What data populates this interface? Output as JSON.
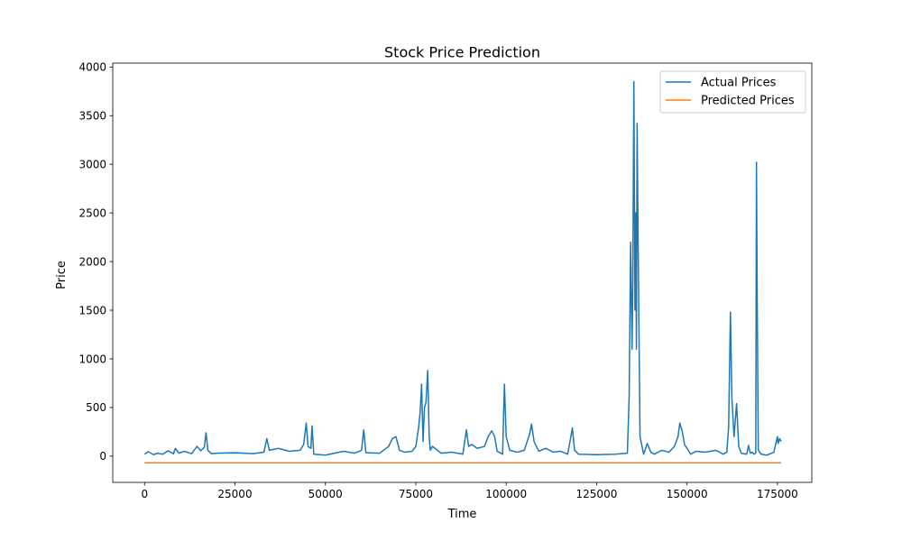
{
  "chart_data": {
    "type": "line",
    "title": "Stock Price Prediction",
    "xlabel": "Time",
    "ylabel": "Price",
    "xlim": [
      -8800,
      184500
    ],
    "ylim": [
      -270,
      4040
    ],
    "xticks": [
      0,
      25000,
      50000,
      75000,
      100000,
      125000,
      150000,
      175000
    ],
    "xtick_labels": [
      "0",
      "25000",
      "50000",
      "75000",
      "100000",
      "125000",
      "150000",
      "175000"
    ],
    "yticks": [
      0,
      500,
      1000,
      1500,
      2000,
      2500,
      3000,
      3500,
      4000
    ],
    "ytick_labels": [
      "0",
      "500",
      "1000",
      "1500",
      "2000",
      "2500",
      "3000",
      "3500",
      "4000"
    ],
    "grid": false,
    "legend_position": "top-right",
    "series": [
      {
        "name": "Actual Prices",
        "color": "#1f77b4",
        "x": [
          0,
          1000,
          2500,
          3500,
          5000,
          6500,
          8000,
          8500,
          9500,
          11000,
          13000,
          14500,
          15500,
          16500,
          17000,
          17500,
          18500,
          20000,
          25000,
          30000,
          33000,
          33800,
          34500,
          37000,
          40000,
          43000,
          44000,
          44700,
          45200,
          46000,
          46300,
          46800,
          50000,
          55000,
          58000,
          60000,
          60600,
          61200,
          65000,
          67500,
          68500,
          69500,
          70500,
          72000,
          74000,
          75000,
          75800,
          76200,
          76600,
          77000,
          77400,
          77800,
          78300,
          78700,
          79000,
          79600,
          81000,
          82000,
          85000,
          88000,
          89000,
          89600,
          90500,
          92000,
          94000,
          95000,
          96000,
          96800,
          97500,
          99000,
          99500,
          100000,
          101000,
          103000,
          105000,
          106500,
          107000,
          107700,
          109000,
          111000,
          113000,
          115000,
          117000,
          118300,
          118900,
          120000,
          125000,
          130000,
          133500,
          134000,
          134400,
          134800,
          135000,
          135300,
          135600,
          135800,
          136000,
          136200,
          136500,
          137000,
          138000,
          139000,
          140000,
          141000,
          143000,
          145000,
          146500,
          147500,
          148000,
          148700,
          149300,
          150000,
          151000,
          152500,
          155000,
          158000,
          160000,
          161000,
          161500,
          162000,
          162400,
          163000,
          163700,
          164300,
          165000,
          166500,
          167000,
          167500,
          168000,
          168500,
          169000,
          169200,
          169400,
          169700,
          170500,
          172000,
          174000,
          175000,
          175200,
          175600,
          176000
        ],
        "values": [
          20,
          45,
          15,
          30,
          20,
          55,
          25,
          80,
          30,
          50,
          25,
          100,
          55,
          90,
          240,
          60,
          25,
          30,
          35,
          25,
          40,
          180,
          60,
          80,
          50,
          60,
          120,
          340,
          100,
          80,
          310,
          20,
          10,
          50,
          30,
          60,
          270,
          35,
          30,
          100,
          180,
          200,
          60,
          40,
          50,
          100,
          300,
          450,
          740,
          150,
          500,
          550,
          880,
          200,
          60,
          100,
          60,
          30,
          40,
          20,
          270,
          100,
          120,
          80,
          100,
          200,
          260,
          200,
          50,
          20,
          740,
          200,
          60,
          40,
          60,
          230,
          330,
          150,
          50,
          80,
          40,
          50,
          20,
          290,
          60,
          20,
          15,
          20,
          30,
          620,
          2200,
          1100,
          1750,
          3850,
          1500,
          2500,
          1100,
          3420,
          2100,
          200,
          20,
          130,
          40,
          20,
          60,
          40,
          100,
          200,
          340,
          250,
          120,
          80,
          20,
          50,
          40,
          60,
          20,
          40,
          300,
          1480,
          600,
          200,
          540,
          100,
          30,
          20,
          110,
          30,
          40,
          20,
          30,
          3020,
          1650,
          60,
          20,
          10,
          40,
          200,
          130,
          180,
          150
        ]
      },
      {
        "name": "Predicted Prices",
        "color": "#ff7f0e",
        "x": [
          0,
          176000
        ],
        "values": [
          -68,
          -68
        ]
      }
    ]
  }
}
